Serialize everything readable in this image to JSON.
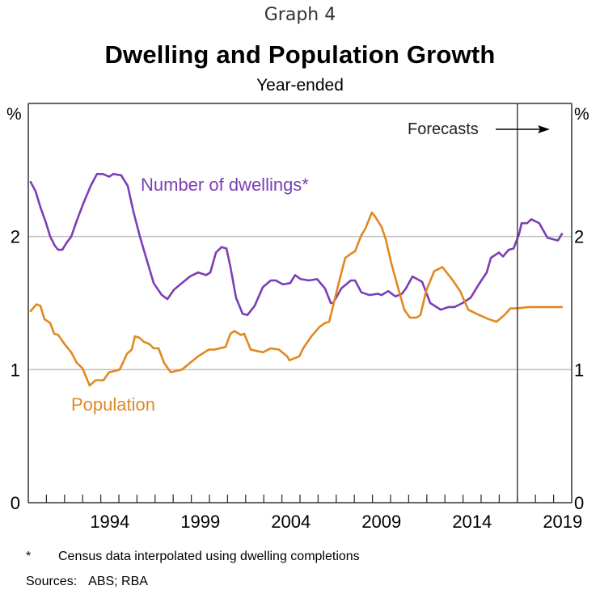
{
  "header": {
    "graph_number": "Graph 4",
    "title": "Dwelling and Population Growth",
    "subtitle": "Year-ended"
  },
  "chart_data": {
    "type": "line",
    "title": "Dwelling and Population Growth",
    "subtitle": "Year-ended",
    "xlabel": "",
    "ylabel_left": "%",
    "ylabel_right": "%",
    "xlim": [
      1990,
      2020
    ],
    "ylim": [
      0,
      3
    ],
    "y_ticks": [
      0,
      1,
      2
    ],
    "x_tick_labels": [
      "1994",
      "1999",
      "2004",
      "2009",
      "2014",
      "2019"
    ],
    "x_tick_label_years": [
      1994,
      1999,
      2004,
      2009,
      2014,
      2019
    ],
    "grid": "horizontal",
    "forecast_start": 2017.0,
    "annotations": [
      {
        "text": "Forecasts",
        "arrow": "right"
      }
    ],
    "series": [
      {
        "name": "Number of dwellings*",
        "color": "#7B3FB5",
        "points": [
          [
            1990.13,
            2.41
          ],
          [
            1990.4,
            2.34
          ],
          [
            1990.67,
            2.22
          ],
          [
            1990.98,
            2.1
          ],
          [
            1991.21,
            2.0
          ],
          [
            1991.47,
            1.93
          ],
          [
            1991.65,
            1.9
          ],
          [
            1991.88,
            1.9
          ],
          [
            1992.1,
            1.95
          ],
          [
            1992.37,
            2.0
          ],
          [
            1992.68,
            2.12
          ],
          [
            1993.04,
            2.25
          ],
          [
            1993.44,
            2.38
          ],
          [
            1993.79,
            2.47
          ],
          [
            1994.11,
            2.47
          ],
          [
            1994.46,
            2.45
          ],
          [
            1994.69,
            2.47
          ],
          [
            1995.13,
            2.46
          ],
          [
            1995.49,
            2.38
          ],
          [
            1995.8,
            2.19
          ],
          [
            1996.16,
            2.0
          ],
          [
            1996.92,
            1.65
          ],
          [
            1997.37,
            1.56
          ],
          [
            1997.68,
            1.53
          ],
          [
            1998.04,
            1.6
          ],
          [
            1998.48,
            1.65
          ],
          [
            1998.93,
            1.7
          ],
          [
            1999.38,
            1.73
          ],
          [
            1999.82,
            1.71
          ],
          [
            2000.05,
            1.73
          ],
          [
            2000.36,
            1.88
          ],
          [
            2000.67,
            1.92
          ],
          [
            2000.94,
            1.91
          ],
          [
            2001.16,
            1.77
          ],
          [
            2001.47,
            1.54
          ],
          [
            2001.83,
            1.42
          ],
          [
            2002.1,
            1.41
          ],
          [
            2002.5,
            1.48
          ],
          [
            2002.95,
            1.62
          ],
          [
            2003.39,
            1.67
          ],
          [
            2003.66,
            1.67
          ],
          [
            2004.06,
            1.64
          ],
          [
            2004.46,
            1.65
          ],
          [
            2004.73,
            1.71
          ],
          [
            2005.04,
            1.68
          ],
          [
            2005.49,
            1.67
          ],
          [
            2005.94,
            1.68
          ],
          [
            2006.38,
            1.61
          ],
          [
            2006.7,
            1.5
          ],
          [
            2006.83,
            1.5
          ],
          [
            2007.28,
            1.61
          ],
          [
            2007.81,
            1.67
          ],
          [
            2008.04,
            1.67
          ],
          [
            2008.39,
            1.58
          ],
          [
            2008.84,
            1.56
          ],
          [
            2009.29,
            1.57
          ],
          [
            2009.51,
            1.56
          ],
          [
            2009.87,
            1.59
          ],
          [
            2010.27,
            1.55
          ],
          [
            2010.63,
            1.57
          ],
          [
            2010.85,
            1.61
          ],
          [
            2011.21,
            1.7
          ],
          [
            2011.74,
            1.66
          ],
          [
            2012.19,
            1.5
          ],
          [
            2012.77,
            1.45
          ],
          [
            2013.21,
            1.47
          ],
          [
            2013.53,
            1.47
          ],
          [
            2013.97,
            1.5
          ],
          [
            2014.42,
            1.54
          ],
          [
            2014.87,
            1.64
          ],
          [
            2015.31,
            1.73
          ],
          [
            2015.54,
            1.84
          ],
          [
            2015.98,
            1.88
          ],
          [
            2016.21,
            1.85
          ],
          [
            2016.52,
            1.9
          ],
          [
            2016.79,
            1.91
          ],
          [
            2017.1,
            2.02
          ],
          [
            2017.23,
            2.1
          ],
          [
            2017.54,
            2.1
          ],
          [
            2017.77,
            2.13
          ],
          [
            2018.21,
            2.1
          ],
          [
            2018.66,
            1.99
          ],
          [
            2018.97,
            1.98
          ],
          [
            2019.24,
            1.97
          ],
          [
            2019.46,
            2.02
          ]
        ]
      },
      {
        "name": "Population",
        "color": "#E0891F",
        "points": [
          [
            1990.13,
            1.44
          ],
          [
            1990.45,
            1.49
          ],
          [
            1990.67,
            1.48
          ],
          [
            1990.89,
            1.38
          ],
          [
            1991.21,
            1.35
          ],
          [
            1991.43,
            1.27
          ],
          [
            1991.65,
            1.26
          ],
          [
            1992.01,
            1.19
          ],
          [
            1992.37,
            1.13
          ],
          [
            1992.68,
            1.05
          ],
          [
            1992.99,
            1.01
          ],
          [
            1993.39,
            0.88
          ],
          [
            1993.71,
            0.92
          ],
          [
            1994.15,
            0.92
          ],
          [
            1994.46,
            0.98
          ],
          [
            1994.78,
            0.99
          ],
          [
            1995.04,
            1.0
          ],
          [
            1995.22,
            1.05
          ],
          [
            1995.45,
            1.12
          ],
          [
            1995.71,
            1.15
          ],
          [
            1995.89,
            1.25
          ],
          [
            1996.12,
            1.24
          ],
          [
            1996.38,
            1.21
          ],
          [
            1996.7,
            1.19
          ],
          [
            1996.92,
            1.16
          ],
          [
            1997.19,
            1.16
          ],
          [
            1997.5,
            1.05
          ],
          [
            1997.86,
            0.98
          ],
          [
            1998.17,
            0.99
          ],
          [
            1998.48,
            1.0
          ],
          [
            1998.93,
            1.05
          ],
          [
            1999.38,
            1.1
          ],
          [
            1999.96,
            1.15
          ],
          [
            2000.27,
            1.15
          ],
          [
            2000.89,
            1.17
          ],
          [
            2001.16,
            1.27
          ],
          [
            2001.38,
            1.29
          ],
          [
            2001.74,
            1.26
          ],
          [
            2001.92,
            1.27
          ],
          [
            2002.28,
            1.15
          ],
          [
            2002.63,
            1.14
          ],
          [
            2002.95,
            1.13
          ],
          [
            2003.39,
            1.16
          ],
          [
            2003.84,
            1.15
          ],
          [
            2004.29,
            1.1
          ],
          [
            2004.42,
            1.07
          ],
          [
            2004.96,
            1.1
          ],
          [
            2005.18,
            1.16
          ],
          [
            2005.63,
            1.25
          ],
          [
            2006.07,
            1.32
          ],
          [
            2006.38,
            1.35
          ],
          [
            2006.61,
            1.36
          ],
          [
            2006.92,
            1.53
          ],
          [
            2007.19,
            1.68
          ],
          [
            2007.5,
            1.84
          ],
          [
            2007.81,
            1.87
          ],
          [
            2008.04,
            1.89
          ],
          [
            2008.39,
            2.01
          ],
          [
            2008.61,
            2.06
          ],
          [
            2008.97,
            2.18
          ],
          [
            2009.15,
            2.15
          ],
          [
            2009.51,
            2.07
          ],
          [
            2009.73,
            1.98
          ],
          [
            2010.04,
            1.8
          ],
          [
            2010.4,
            1.62
          ],
          [
            2010.76,
            1.45
          ],
          [
            2011.07,
            1.39
          ],
          [
            2011.43,
            1.39
          ],
          [
            2011.65,
            1.41
          ],
          [
            2011.96,
            1.59
          ],
          [
            2012.41,
            1.74
          ],
          [
            2012.86,
            1.77
          ],
          [
            2013.39,
            1.68
          ],
          [
            2013.84,
            1.59
          ],
          [
            2014.29,
            1.45
          ],
          [
            2014.73,
            1.42
          ],
          [
            2015.4,
            1.38
          ],
          [
            2015.85,
            1.36
          ],
          [
            2016.29,
            1.41
          ],
          [
            2016.61,
            1.46
          ],
          [
            2016.96,
            1.46
          ],
          [
            2017.63,
            1.47
          ],
          [
            2019.46,
            1.47
          ]
        ]
      }
    ],
    "series_labels": [
      {
        "series": "Number of dwellings*",
        "text": "Number of dwellings*"
      },
      {
        "series": "Population",
        "text": "Population"
      }
    ]
  },
  "axes": {
    "left_unit": "%",
    "right_unit": "%",
    "y_tick_labels": [
      "0",
      "1",
      "2"
    ]
  },
  "annotation": {
    "forecast_label": "Forecasts"
  },
  "footnotes": {
    "star": "*",
    "text": "Census data interpolated using dwelling completions",
    "sources_label": "Sources:",
    "sources_value": "ABS; RBA"
  }
}
